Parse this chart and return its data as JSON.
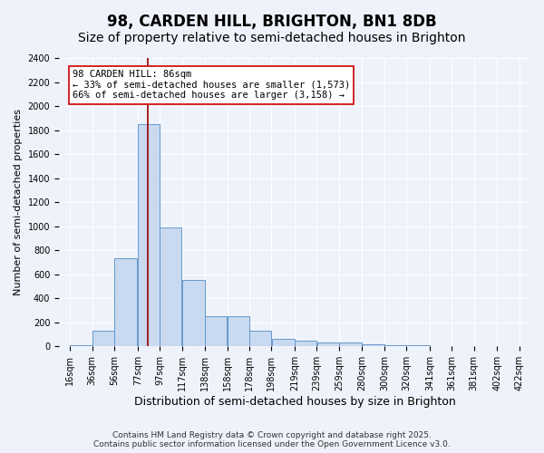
{
  "title": "98, CARDEN HILL, BRIGHTON, BN1 8DB",
  "subtitle": "Size of property relative to semi-detached houses in Brighton",
  "xlabel": "Distribution of semi-detached houses by size in Brighton",
  "ylabel": "Number of semi-detached properties",
  "bin_edges": [
    16,
    36,
    56,
    77,
    97,
    117,
    138,
    158,
    178,
    198,
    219,
    239,
    259,
    280,
    300,
    320,
    341,
    361,
    381,
    402,
    422
  ],
  "bin_labels": [
    "16sqm",
    "36sqm",
    "56sqm",
    "77sqm",
    "97sqm",
    "117sqm",
    "138sqm",
    "158sqm",
    "178sqm",
    "198sqm",
    "219sqm",
    "239sqm",
    "259sqm",
    "280sqm",
    "300sqm",
    "320sqm",
    "341sqm",
    "361sqm",
    "381sqm",
    "402sqm",
    "422sqm"
  ],
  "counts": [
    10,
    130,
    735,
    1850,
    990,
    550,
    250,
    250,
    130,
    65,
    45,
    30,
    30,
    20,
    10,
    10,
    5,
    3,
    2,
    1
  ],
  "bar_color": "#c8d9f0",
  "bar_edge_color": "#6699cc",
  "vline_x": 86,
  "vline_color": "#990000",
  "annotation_text": "98 CARDEN HILL: 86sqm\n← 33% of semi-detached houses are smaller (1,573)\n66% of semi-detached houses are larger (3,158) →",
  "annotation_box_color": "#ffffff",
  "annotation_box_edge": "#cc0000",
  "ylim": [
    0,
    2400
  ],
  "yticks": [
    0,
    200,
    400,
    600,
    800,
    1000,
    1200,
    1400,
    1600,
    1800,
    2000,
    2200,
    2400
  ],
  "bg_color": "#eef2fa",
  "plot_bg_color": "#eef2fa",
  "footer_text": "Contains HM Land Registry data © Crown copyright and database right 2025.\nContains public sector information licensed under the Open Government Licence v3.0.",
  "title_fontsize": 12,
  "subtitle_fontsize": 10,
  "xlabel_fontsize": 9,
  "ylabel_fontsize": 8,
  "tick_fontsize": 7,
  "annotation_fontsize": 7.5,
  "footer_fontsize": 6.5
}
